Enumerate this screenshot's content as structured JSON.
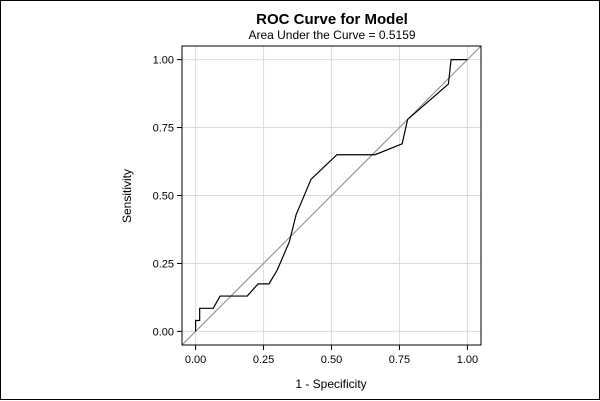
{
  "chart_data": {
    "type": "line",
    "title": "ROC Curve for Model",
    "subtitle": "Area Under the Curve = 0.5159",
    "xlabel": "1 - Specificity",
    "ylabel": "Sensitivity",
    "xlim": [
      -0.05,
      1.05
    ],
    "ylim": [
      -0.05,
      1.05
    ],
    "xticks": [
      "0.00",
      "0.25",
      "0.50",
      "0.75",
      "1.00"
    ],
    "yticks": [
      "0.00",
      "0.25",
      "0.50",
      "0.75",
      "1.00"
    ],
    "grid": true,
    "series": [
      {
        "color": "#000000",
        "x": [
          0.0,
          0.0,
          0.015,
          0.015,
          0.065,
          0.09,
          0.19,
          0.23,
          0.27,
          0.3,
          0.345,
          0.37,
          0.425,
          0.52,
          0.66,
          0.76,
          0.78,
          0.93,
          0.94,
          1.0
        ],
        "y": [
          0.0,
          0.04,
          0.04,
          0.085,
          0.085,
          0.13,
          0.13,
          0.175,
          0.175,
          0.225,
          0.33,
          0.43,
          0.56,
          0.65,
          0.65,
          0.69,
          0.78,
          0.91,
          1.0,
          1.0
        ]
      },
      {
        "color": "#888888",
        "x": [
          -0.05,
          1.05
        ],
        "y": [
          -0.05,
          1.05
        ]
      }
    ]
  }
}
